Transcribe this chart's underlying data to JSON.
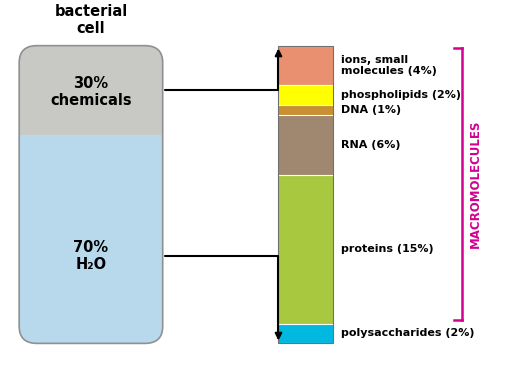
{
  "title": "bacterial\ncell",
  "cell_top_label": "30%\nchemicals",
  "cell_top_color": "#c8c8c4",
  "cell_bottom_label": "70%\nH₂O",
  "cell_bottom_color": "#b8d8ec",
  "bar_segments": [
    {
      "label": "ions, small\nmolecules (4%)",
      "pct": 4,
      "color": "#e89070"
    },
    {
      "label": "phospholipids (2%)",
      "pct": 2,
      "color": "#ffff00"
    },
    {
      "label": "DNA (1%)",
      "pct": 1,
      "color": "#c89030"
    },
    {
      "label": "RNA (6%)",
      "pct": 6,
      "color": "#a08870"
    },
    {
      "label": "proteins (15%)",
      "pct": 15,
      "color": "#a8c840"
    },
    {
      "label": "polysaccharides (2%)",
      "pct": 2,
      "color": "#00b8e0"
    }
  ],
  "macromolecules_label": "MACROMOLECULES",
  "macromolecules_color": "#d4008f",
  "background_color": "#ffffff"
}
